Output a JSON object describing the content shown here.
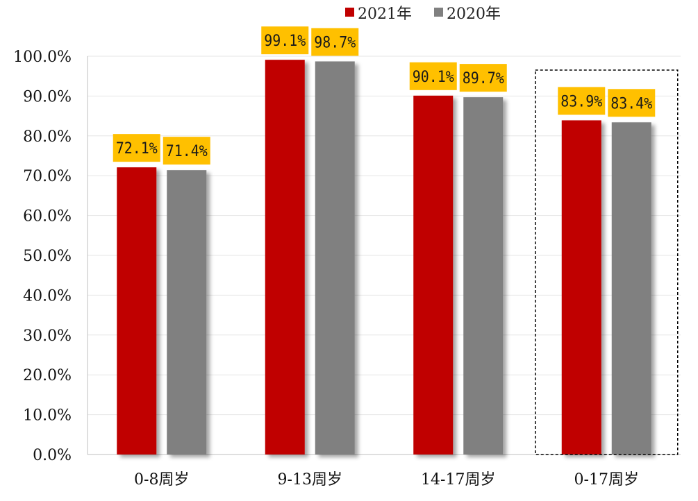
{
  "chart_data": {
    "type": "bar",
    "categories": [
      "0-8周岁",
      "9-13周岁",
      "14-17周岁",
      "0-17周岁"
    ],
    "series": [
      {
        "name": "2021年",
        "values": [
          72.1,
          99.1,
          90.1,
          83.9
        ],
        "labels": [
          "72.1%",
          "99.1%",
          "90.1%",
          "83.9%"
        ],
        "color": "#c00000"
      },
      {
        "name": "2020年",
        "values": [
          71.4,
          98.7,
          89.7,
          83.4
        ],
        "labels": [
          "71.4%",
          "98.7%",
          "89.7%",
          "83.4%"
        ],
        "color": "#808080"
      }
    ],
    "ylim": [
      0,
      100
    ],
    "yticks": [
      0,
      10,
      20,
      30,
      40,
      50,
      60,
      70,
      80,
      90,
      100
    ],
    "ytick_labels": [
      "0.0%",
      "10.0%",
      "20.0%",
      "30.0%",
      "40.0%",
      "50.0%",
      "60.0%",
      "70.0%",
      "80.0%",
      "90.0%",
      "100.0%"
    ],
    "grid": true,
    "legend_position": "top-center",
    "highlighted_category": "0-17周岁",
    "data_label_background": "#ffc000",
    "gridline_color": "#e6e6e6"
  }
}
